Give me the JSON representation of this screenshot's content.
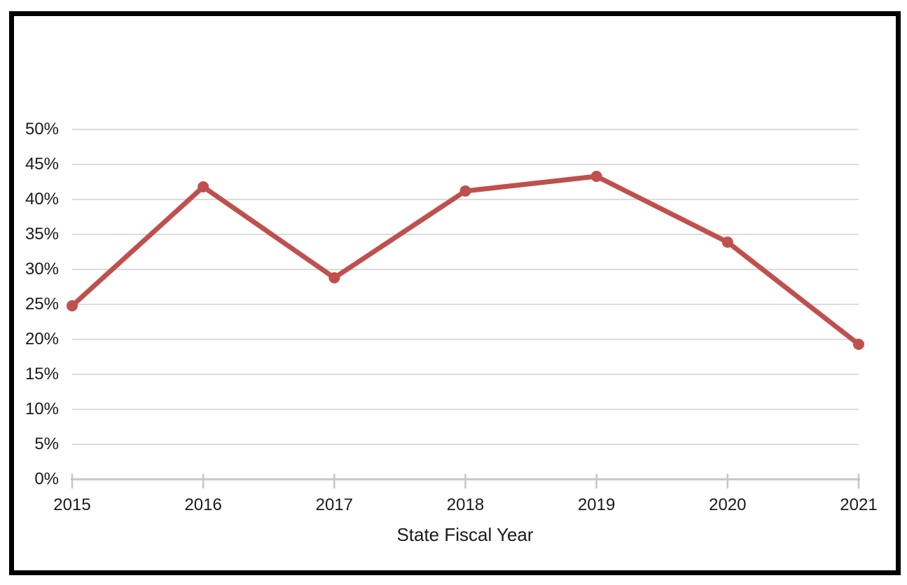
{
  "window": {
    "background": "#FFFFFF",
    "frame_border_color": "#000000"
  },
  "chart_data": {
    "type": "line",
    "title": "",
    "xlabel": "State Fiscal Year",
    "ylabel": "",
    "categories": [
      "2015",
      "2016",
      "2017",
      "2018",
      "2019",
      "2020",
      "2021"
    ],
    "values": [
      24.8,
      41.8,
      28.8,
      41.2,
      43.3,
      33.9,
      19.3
    ],
    "y_ticks": [
      "0%",
      "5%",
      "10%",
      "15%",
      "20%",
      "25%",
      "30%",
      "35%",
      "40%",
      "45%",
      "50%"
    ],
    "ylim": [
      0,
      50
    ],
    "grid": "horizontal",
    "legend": "none",
    "marker": "circle",
    "colors": {
      "line": "#C0504D",
      "marker": "#C0504D",
      "gridline": "#DBDBDB",
      "axis": "#C6C6C6",
      "text": "#1A1A1A"
    }
  }
}
